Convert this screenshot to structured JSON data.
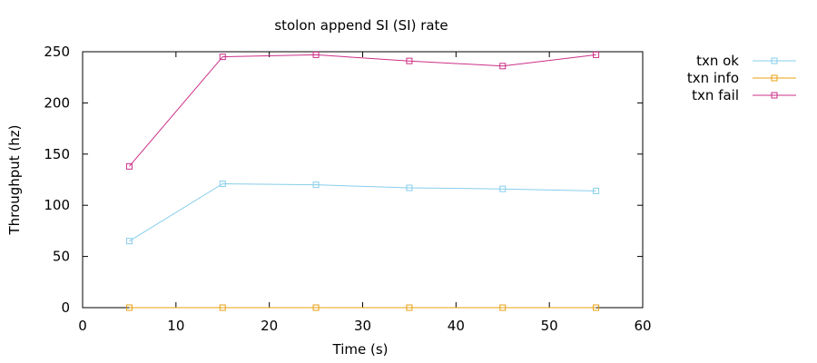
{
  "chart_data": {
    "type": "line",
    "title": "stolon append SI (SI)  rate",
    "xlabel": "Time (s)",
    "ylabel": "Throughput (hz)",
    "xlim": [
      0,
      60
    ],
    "ylim": [
      0,
      250
    ],
    "xticks": [
      0,
      10,
      20,
      30,
      40,
      50,
      60
    ],
    "yticks": [
      0,
      50,
      100,
      150,
      200,
      250
    ],
    "grid": false,
    "legend_position": "top-right outside",
    "series": [
      {
        "name": "txn ok",
        "color": "#87ceeb",
        "x": [
          5,
          15,
          25,
          35,
          45,
          55
        ],
        "values": [
          65,
          121,
          120,
          117,
          116,
          114
        ]
      },
      {
        "name": "txn info",
        "color": "#e8a013",
        "x": [
          5,
          15,
          25,
          35,
          45,
          55
        ],
        "values": [
          0,
          0,
          0,
          0,
          0,
          0
        ]
      },
      {
        "name": "txn fail",
        "color": "#cc2f87",
        "x": [
          5,
          15,
          25,
          35,
          45,
          55
        ],
        "values": [
          138,
          245,
          247,
          241,
          236,
          247
        ]
      }
    ]
  }
}
